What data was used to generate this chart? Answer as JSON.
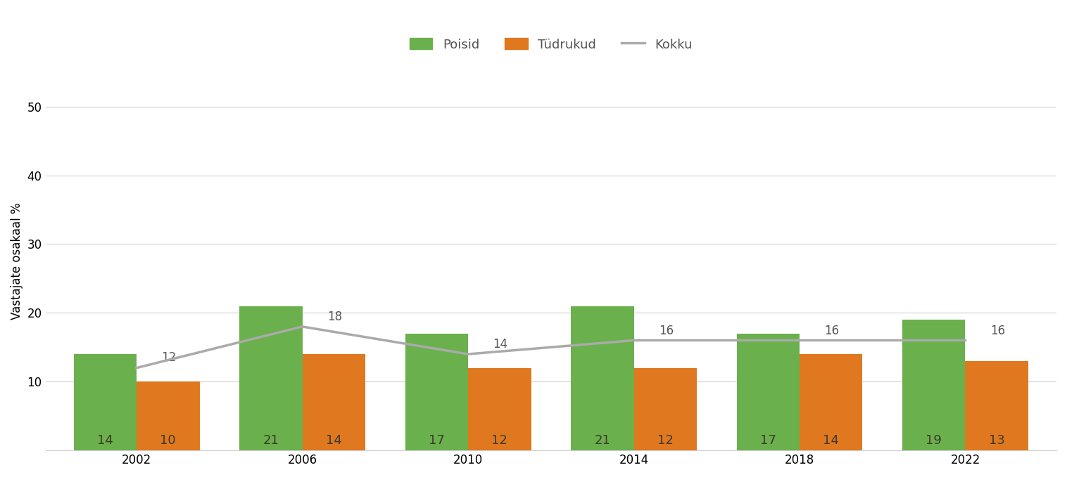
{
  "years": [
    2002,
    2006,
    2010,
    2014,
    2018,
    2022
  ],
  "poisid": [
    14,
    21,
    17,
    21,
    17,
    19
  ],
  "tudrukud": [
    10,
    14,
    12,
    12,
    14,
    13
  ],
  "kokku": [
    12,
    18,
    14,
    16,
    16,
    16
  ],
  "bar_color_poisid": "#6ab04c",
  "bar_color_tudrukud": "#e07820",
  "line_color_kokku": "#aaaaaa",
  "ylabel": "Vastajate osakaal %",
  "ylim": [
    0,
    55
  ],
  "yticks": [
    0,
    10,
    20,
    30,
    40,
    50
  ],
  "legend_poisid": "Poisid",
  "legend_tudrukud": "Tüdrukud",
  "legend_kokku": "Kokku",
  "bar_width": 0.38,
  "background_color": "#ffffff",
  "grid_color": "#d0d0d0",
  "label_fontsize": 12,
  "tick_fontsize": 12,
  "legend_fontsize": 13,
  "bar_label_fontsize": 13,
  "kokku_label_fontsize": 12,
  "ylabel_fontsize": 12,
  "bar_label_color": "#3a3a2a",
  "kokku_label_color": "#555555"
}
